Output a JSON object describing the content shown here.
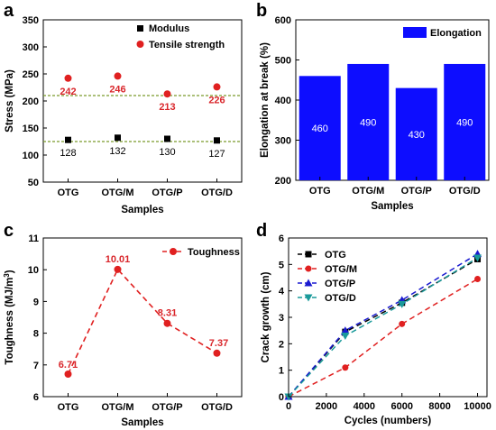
{
  "panel_letters": [
    "a",
    "b",
    "c",
    "d"
  ],
  "chart_data": [
    {
      "panel": "a",
      "type": "scatter",
      "xlabel": "Samples",
      "ylabel": "Stress (MPa)",
      "ylim": [
        50,
        350
      ],
      "yticks": [
        50,
        100,
        150,
        200,
        250,
        300,
        350
      ],
      "categories": [
        "OTG",
        "OTG/M",
        "OTG/P",
        "OTG/D"
      ],
      "legend_position": "top-right",
      "colors": {
        "modulus": "#000000",
        "tensile": "#e02020",
        "refline": "#7a9a2a"
      },
      "series": [
        {
          "name": "Modulus",
          "values": [
            128,
            132,
            130,
            127
          ],
          "labels": [
            "128",
            "132",
            "130",
            "127"
          ],
          "marker": "square"
        },
        {
          "name": "Tensile strength",
          "values": [
            242,
            246,
            213,
            226
          ],
          "labels": [
            "242",
            "246",
            "213",
            "226"
          ],
          "marker": "circle"
        }
      ],
      "reference_lines": [
        210,
        125
      ]
    },
    {
      "panel": "b",
      "type": "bar",
      "xlabel": "Samples",
      "ylabel": "Elongation at break (%)",
      "ylim": [
        200,
        600
      ],
      "yticks": [
        200,
        300,
        400,
        500,
        600
      ],
      "categories": [
        "OTG",
        "OTG/M",
        "OTG/P",
        "OTG/D"
      ],
      "legend_position": "top-right",
      "colors": {
        "bar": "#0d0dff"
      },
      "series": [
        {
          "name": "Elongation",
          "values": [
            460,
            490,
            430,
            490
          ],
          "labels": [
            "460",
            "490",
            "430",
            "490"
          ]
        }
      ]
    },
    {
      "panel": "c",
      "type": "line",
      "xlabel": "Samples",
      "ylabel_main": "Toughness (MJ/m",
      "ylabel_sup": "3",
      "ylabel_end": ")",
      "ylim": [
        6,
        11
      ],
      "yticks": [
        6,
        7,
        8,
        9,
        10,
        11
      ],
      "categories": [
        "OTG",
        "OTG/M",
        "OTG/P",
        "OTG/D"
      ],
      "legend_position": "top-right",
      "colors": {
        "line": "#e02020"
      },
      "series": [
        {
          "name": "Toughness",
          "values": [
            6.71,
            10.01,
            8.31,
            7.37
          ],
          "labels": [
            "6.71",
            "10.01",
            "8.31",
            "7.37"
          ]
        }
      ]
    },
    {
      "panel": "d",
      "type": "line",
      "xlabel": "Cycles (numbers)",
      "ylabel": "Crack growth (cm)",
      "xlim": [
        0,
        10500
      ],
      "xticks": [
        0,
        2000,
        4000,
        6000,
        8000,
        10000
      ],
      "ylim": [
        0,
        6
      ],
      "yticks": [
        0,
        1,
        2,
        3,
        4,
        5,
        6
      ],
      "legend_position": "top-left",
      "x": [
        0,
        3000,
        6000,
        10000
      ],
      "series": [
        {
          "name": "OTG",
          "values": [
            0,
            2.45,
            3.55,
            5.2
          ],
          "color": "#000000",
          "marker": "square",
          "dash": "6,4"
        },
        {
          "name": "OTG/M",
          "values": [
            0,
            1.1,
            2.75,
            4.45
          ],
          "color": "#e02020",
          "marker": "circle",
          "dash": "6,4"
        },
        {
          "name": "OTG/P",
          "values": [
            0,
            2.5,
            3.65,
            5.4
          ],
          "color": "#1a1ad0",
          "marker": "triangle-up",
          "dash": "6,4"
        },
        {
          "name": "OTG/D",
          "values": [
            0,
            2.3,
            3.5,
            5.25
          ],
          "color": "#1a9a9a",
          "marker": "triangle-down",
          "dash": "6,4"
        }
      ]
    }
  ]
}
